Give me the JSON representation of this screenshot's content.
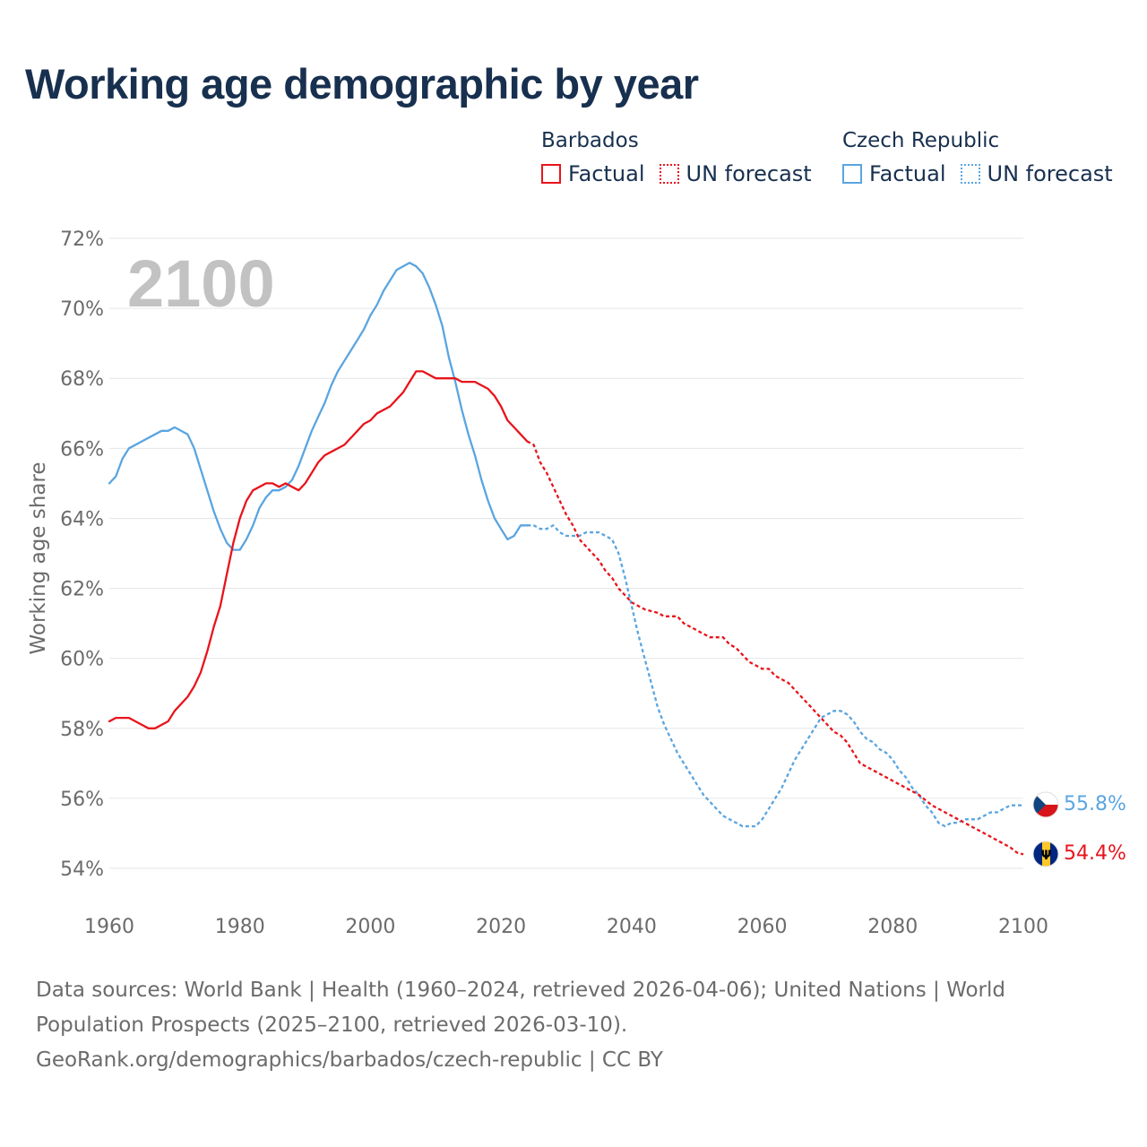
{
  "title": "Working age demographic by year",
  "year_watermark": "2100",
  "legend": {
    "groups": [
      {
        "country": "Barbados",
        "color": "#e8141b",
        "items": [
          {
            "label": "Factual",
            "style": "solid"
          },
          {
            "label": "UN forecast",
            "style": "dotted"
          }
        ]
      },
      {
        "country": "Czech Republic",
        "color": "#5aa5e0",
        "items": [
          {
            "label": "Factual",
            "style": "solid"
          },
          {
            "label": "UN forecast",
            "style": "dotted"
          }
        ]
      }
    ]
  },
  "footer": {
    "source_line": "Data sources: World Bank | Health (1960–2024, retrieved 2026-04-06); United Nations | World Population Prospects (2025–2100, retrieved 2026-03-10).",
    "url_line": "GeoRank.org/demographics/barbados/czech-republic | CC BY"
  },
  "chart_data": {
    "type": "line",
    "ylabel": "Working age share",
    "xlabel": "",
    "xlim": [
      1960,
      2100
    ],
    "ylim": [
      53.5,
      72
    ],
    "x_ticks": [
      1960,
      1980,
      2000,
      2020,
      2040,
      2060,
      2080,
      2100
    ],
    "y_ticks": [
      54,
      56,
      58,
      60,
      62,
      64,
      66,
      68,
      70,
      72
    ],
    "y_tick_labels": [
      "54%",
      "56%",
      "58%",
      "60%",
      "62%",
      "64%",
      "66%",
      "68%",
      "70%",
      "72%"
    ],
    "grid": true,
    "series": [
      {
        "name": "Barbados",
        "color": "#e8141b",
        "end_label": "54.4%",
        "factual": [
          [
            1960,
            58.2
          ],
          [
            1961,
            58.3
          ],
          [
            1963,
            58.3
          ],
          [
            1965,
            58.1
          ],
          [
            1966,
            58.0
          ],
          [
            1967,
            58.0
          ],
          [
            1969,
            58.2
          ],
          [
            1970,
            58.5
          ],
          [
            1972,
            58.9
          ],
          [
            1973,
            59.2
          ],
          [
            1974,
            59.6
          ],
          [
            1975,
            60.2
          ],
          [
            1976,
            60.9
          ],
          [
            1977,
            61.5
          ],
          [
            1978,
            62.4
          ],
          [
            1979,
            63.3
          ],
          [
            1980,
            64.0
          ],
          [
            1981,
            64.5
          ],
          [
            1982,
            64.8
          ],
          [
            1984,
            65.0
          ],
          [
            1985,
            65.0
          ],
          [
            1986,
            64.9
          ],
          [
            1987,
            65.0
          ],
          [
            1988,
            64.9
          ],
          [
            1989,
            64.8
          ],
          [
            1990,
            65.0
          ],
          [
            1991,
            65.3
          ],
          [
            1992,
            65.6
          ],
          [
            1993,
            65.8
          ],
          [
            1994,
            65.9
          ],
          [
            1996,
            66.1
          ],
          [
            1997,
            66.3
          ],
          [
            1998,
            66.5
          ],
          [
            1999,
            66.7
          ],
          [
            2000,
            66.8
          ],
          [
            2001,
            67.0
          ],
          [
            2003,
            67.2
          ],
          [
            2005,
            67.6
          ],
          [
            2006,
            67.9
          ],
          [
            2007,
            68.2
          ],
          [
            2008,
            68.2
          ],
          [
            2010,
            68.0
          ],
          [
            2013,
            68.0
          ],
          [
            2014,
            67.9
          ],
          [
            2016,
            67.9
          ],
          [
            2018,
            67.7
          ],
          [
            2019,
            67.5
          ],
          [
            2020,
            67.2
          ],
          [
            2021,
            66.8
          ],
          [
            2022,
            66.6
          ],
          [
            2023,
            66.4
          ],
          [
            2024,
            66.2
          ]
        ],
        "forecast": [
          [
            2024,
            66.2
          ],
          [
            2025,
            66.1
          ],
          [
            2026,
            65.6
          ],
          [
            2027,
            65.3
          ],
          [
            2028,
            64.9
          ],
          [
            2029,
            64.5
          ],
          [
            2030,
            64.1
          ],
          [
            2031,
            63.8
          ],
          [
            2032,
            63.4
          ],
          [
            2033,
            63.2
          ],
          [
            2034,
            63.0
          ],
          [
            2035,
            62.8
          ],
          [
            2036,
            62.5
          ],
          [
            2037,
            62.3
          ],
          [
            2038,
            62.0
          ],
          [
            2039,
            61.8
          ],
          [
            2040,
            61.6
          ],
          [
            2041,
            61.5
          ],
          [
            2042,
            61.4
          ],
          [
            2044,
            61.3
          ],
          [
            2045,
            61.2
          ],
          [
            2047,
            61.2
          ],
          [
            2048,
            61.0
          ],
          [
            2050,
            60.8
          ],
          [
            2052,
            60.6
          ],
          [
            2054,
            60.6
          ],
          [
            2055,
            60.4
          ],
          [
            2056,
            60.3
          ],
          [
            2057,
            60.1
          ],
          [
            2058,
            59.9
          ],
          [
            2060,
            59.7
          ],
          [
            2061,
            59.7
          ],
          [
            2062,
            59.5
          ],
          [
            2064,
            59.3
          ],
          [
            2065,
            59.1
          ],
          [
            2066,
            58.9
          ],
          [
            2067,
            58.7
          ],
          [
            2068,
            58.5
          ],
          [
            2070,
            58.1
          ],
          [
            2071,
            57.9
          ],
          [
            2072,
            57.8
          ],
          [
            2073,
            57.6
          ],
          [
            2074,
            57.3
          ],
          [
            2075,
            57.0
          ],
          [
            2076,
            56.9
          ],
          [
            2078,
            56.7
          ],
          [
            2080,
            56.5
          ],
          [
            2082,
            56.3
          ],
          [
            2084,
            56.1
          ],
          [
            2086,
            55.8
          ],
          [
            2088,
            55.6
          ],
          [
            2090,
            55.4
          ],
          [
            2092,
            55.2
          ],
          [
            2094,
            55.0
          ],
          [
            2096,
            54.8
          ],
          [
            2098,
            54.6
          ],
          [
            2099,
            54.45
          ],
          [
            2100,
            54.4
          ]
        ]
      },
      {
        "name": "Czech Republic",
        "color": "#5aa5e0",
        "end_label": "55.8%",
        "factual": [
          [
            1960,
            65.0
          ],
          [
            1961,
            65.2
          ],
          [
            1962,
            65.7
          ],
          [
            1963,
            66.0
          ],
          [
            1965,
            66.2
          ],
          [
            1967,
            66.4
          ],
          [
            1968,
            66.5
          ],
          [
            1969,
            66.5
          ],
          [
            1970,
            66.6
          ],
          [
            1971,
            66.5
          ],
          [
            1972,
            66.4
          ],
          [
            1973,
            66.0
          ],
          [
            1974,
            65.4
          ],
          [
            1975,
            64.8
          ],
          [
            1976,
            64.2
          ],
          [
            1977,
            63.7
          ],
          [
            1978,
            63.3
          ],
          [
            1979,
            63.1
          ],
          [
            1980,
            63.1
          ],
          [
            1981,
            63.4
          ],
          [
            1982,
            63.8
          ],
          [
            1983,
            64.3
          ],
          [
            1984,
            64.6
          ],
          [
            1985,
            64.8
          ],
          [
            1986,
            64.8
          ],
          [
            1987,
            64.9
          ],
          [
            1988,
            65.1
          ],
          [
            1989,
            65.5
          ],
          [
            1990,
            66.0
          ],
          [
            1991,
            66.5
          ],
          [
            1992,
            66.9
          ],
          [
            1993,
            67.3
          ],
          [
            1994,
            67.8
          ],
          [
            1995,
            68.2
          ],
          [
            1996,
            68.5
          ],
          [
            1997,
            68.8
          ],
          [
            1998,
            69.1
          ],
          [
            1999,
            69.4
          ],
          [
            2000,
            69.8
          ],
          [
            2001,
            70.1
          ],
          [
            2002,
            70.5
          ],
          [
            2003,
            70.8
          ],
          [
            2004,
            71.1
          ],
          [
            2005,
            71.2
          ],
          [
            2006,
            71.3
          ],
          [
            2007,
            71.2
          ],
          [
            2008,
            71.0
          ],
          [
            2009,
            70.6
          ],
          [
            2010,
            70.1
          ],
          [
            2011,
            69.5
          ],
          [
            2012,
            68.6
          ],
          [
            2013,
            67.9
          ],
          [
            2014,
            67.1
          ],
          [
            2015,
            66.4
          ],
          [
            2016,
            65.8
          ],
          [
            2017,
            65.1
          ],
          [
            2018,
            64.5
          ],
          [
            2019,
            64.0
          ],
          [
            2020,
            63.7
          ],
          [
            2021,
            63.4
          ],
          [
            2022,
            63.5
          ],
          [
            2023,
            63.8
          ],
          [
            2024,
            63.8
          ]
        ],
        "forecast": [
          [
            2024,
            63.8
          ],
          [
            2025,
            63.8
          ],
          [
            2026,
            63.7
          ],
          [
            2027,
            63.7
          ],
          [
            2028,
            63.8
          ],
          [
            2029,
            63.6
          ],
          [
            2030,
            63.5
          ],
          [
            2032,
            63.5
          ],
          [
            2033,
            63.6
          ],
          [
            2035,
            63.6
          ],
          [
            2036,
            63.5
          ],
          [
            2037,
            63.4
          ],
          [
            2038,
            63.0
          ],
          [
            2039,
            62.3
          ],
          [
            2040,
            61.5
          ],
          [
            2041,
            60.7
          ],
          [
            2042,
            60.0
          ],
          [
            2043,
            59.3
          ],
          [
            2044,
            58.6
          ],
          [
            2045,
            58.1
          ],
          [
            2046,
            57.7
          ],
          [
            2047,
            57.3
          ],
          [
            2048,
            57.0
          ],
          [
            2049,
            56.7
          ],
          [
            2050,
            56.4
          ],
          [
            2051,
            56.1
          ],
          [
            2052,
            55.9
          ],
          [
            2053,
            55.7
          ],
          [
            2054,
            55.5
          ],
          [
            2055,
            55.4
          ],
          [
            2056,
            55.3
          ],
          [
            2057,
            55.2
          ],
          [
            2058,
            55.2
          ],
          [
            2059,
            55.2
          ],
          [
            2060,
            55.4
          ],
          [
            2061,
            55.7
          ],
          [
            2062,
            56.0
          ],
          [
            2063,
            56.3
          ],
          [
            2064,
            56.7
          ],
          [
            2065,
            57.1
          ],
          [
            2066,
            57.4
          ],
          [
            2067,
            57.7
          ],
          [
            2068,
            58.0
          ],
          [
            2069,
            58.3
          ],
          [
            2070,
            58.4
          ],
          [
            2071,
            58.5
          ],
          [
            2072,
            58.5
          ],
          [
            2073,
            58.4
          ],
          [
            2074,
            58.2
          ],
          [
            2075,
            57.9
          ],
          [
            2076,
            57.7
          ],
          [
            2077,
            57.6
          ],
          [
            2078,
            57.4
          ],
          [
            2079,
            57.3
          ],
          [
            2080,
            57.1
          ],
          [
            2081,
            56.8
          ],
          [
            2082,
            56.6
          ],
          [
            2083,
            56.3
          ],
          [
            2084,
            56.1
          ],
          [
            2085,
            55.8
          ],
          [
            2086,
            55.6
          ],
          [
            2087,
            55.3
          ],
          [
            2088,
            55.2
          ],
          [
            2089,
            55.3
          ],
          [
            2090,
            55.3
          ],
          [
            2091,
            55.4
          ],
          [
            2092,
            55.4
          ],
          [
            2093,
            55.4
          ],
          [
            2094,
            55.5
          ],
          [
            2095,
            55.6
          ],
          [
            2096,
            55.6
          ],
          [
            2097,
            55.7
          ],
          [
            2098,
            55.8
          ],
          [
            2099,
            55.8
          ],
          [
            2100,
            55.8
          ]
        ]
      }
    ]
  }
}
